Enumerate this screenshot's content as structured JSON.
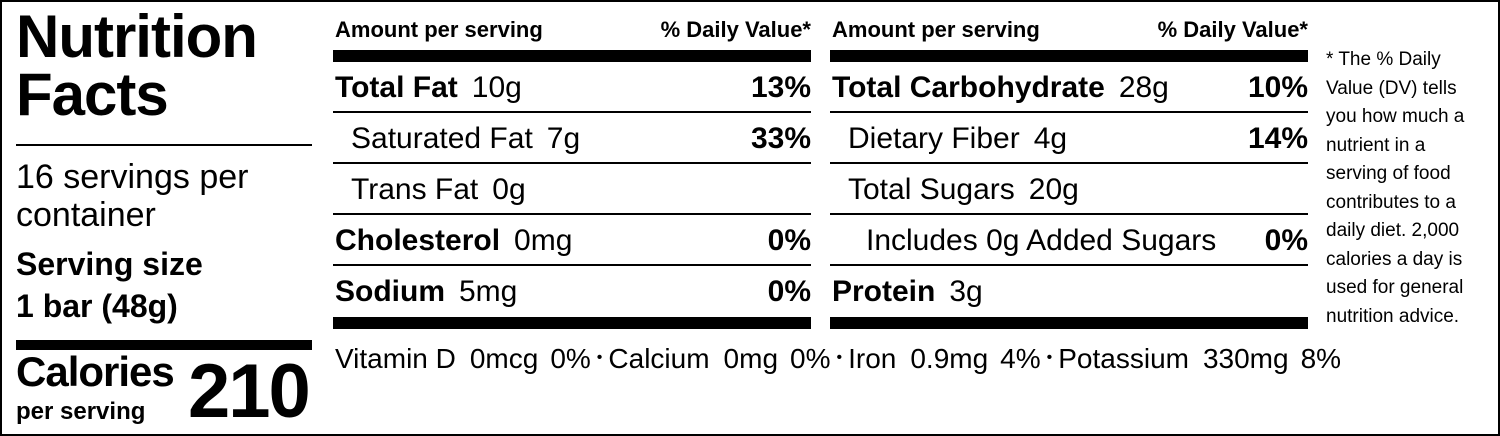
{
  "title": "Nutrition Facts",
  "servings_per_container": "16 servings per container",
  "serving_size_label": "Serving size",
  "serving_size_value": "1 bar (48g)",
  "calories_label": "Calories",
  "calories_sub": "per serving",
  "calories_value": "210",
  "columns": [
    {
      "header_left": "Amount per serving",
      "header_right": "% Daily Value*",
      "rows": [
        {
          "name": "Total Fat",
          "amount": "10g",
          "dv": "13%",
          "bold": true,
          "indent": 0
        },
        {
          "name": "Saturated Fat",
          "amount": "7g",
          "dv": "33%",
          "bold": false,
          "indent": 1
        },
        {
          "name": "Trans Fat",
          "amount": "0g",
          "dv": "",
          "bold": false,
          "indent": 1
        },
        {
          "name": "Cholesterol",
          "amount": "0mg",
          "dv": "0%",
          "bold": true,
          "indent": 0
        },
        {
          "name": "Sodium",
          "amount": "5mg",
          "dv": "0%",
          "bold": true,
          "indent": 0
        }
      ]
    },
    {
      "header_left": "Amount per serving",
      "header_right": "% Daily Value*",
      "rows": [
        {
          "name": "Total Carbohydrate",
          "amount": "28g",
          "dv": "10%",
          "bold": true,
          "indent": 0
        },
        {
          "name": "Dietary Fiber",
          "amount": "4g",
          "dv": "14%",
          "bold": false,
          "indent": 1
        },
        {
          "name": "Total Sugars",
          "amount": "20g",
          "dv": "",
          "bold": false,
          "indent": 1
        },
        {
          "name": "Includes 0g Added Sugars",
          "amount": "",
          "dv": "0%",
          "bold": false,
          "indent": 2
        },
        {
          "name": "Protein",
          "amount": "3g",
          "dv": "",
          "bold": true,
          "indent": 0
        }
      ]
    }
  ],
  "vitamins": [
    {
      "name": "Vitamin D",
      "amount": "0mcg",
      "dv": "0%"
    },
    {
      "name": "Calcium",
      "amount": "0mg",
      "dv": "0%"
    },
    {
      "name": "Iron",
      "amount": "0.9mg",
      "dv": "4%"
    },
    {
      "name": "Potassium",
      "amount": "330mg",
      "dv": "8%"
    }
  ],
  "footnote": "* The % Daily Value (DV) tells you how much a nutrient in a serving of food contributes to a daily diet. 2,000 calories a day is used for general nutrition advice."
}
